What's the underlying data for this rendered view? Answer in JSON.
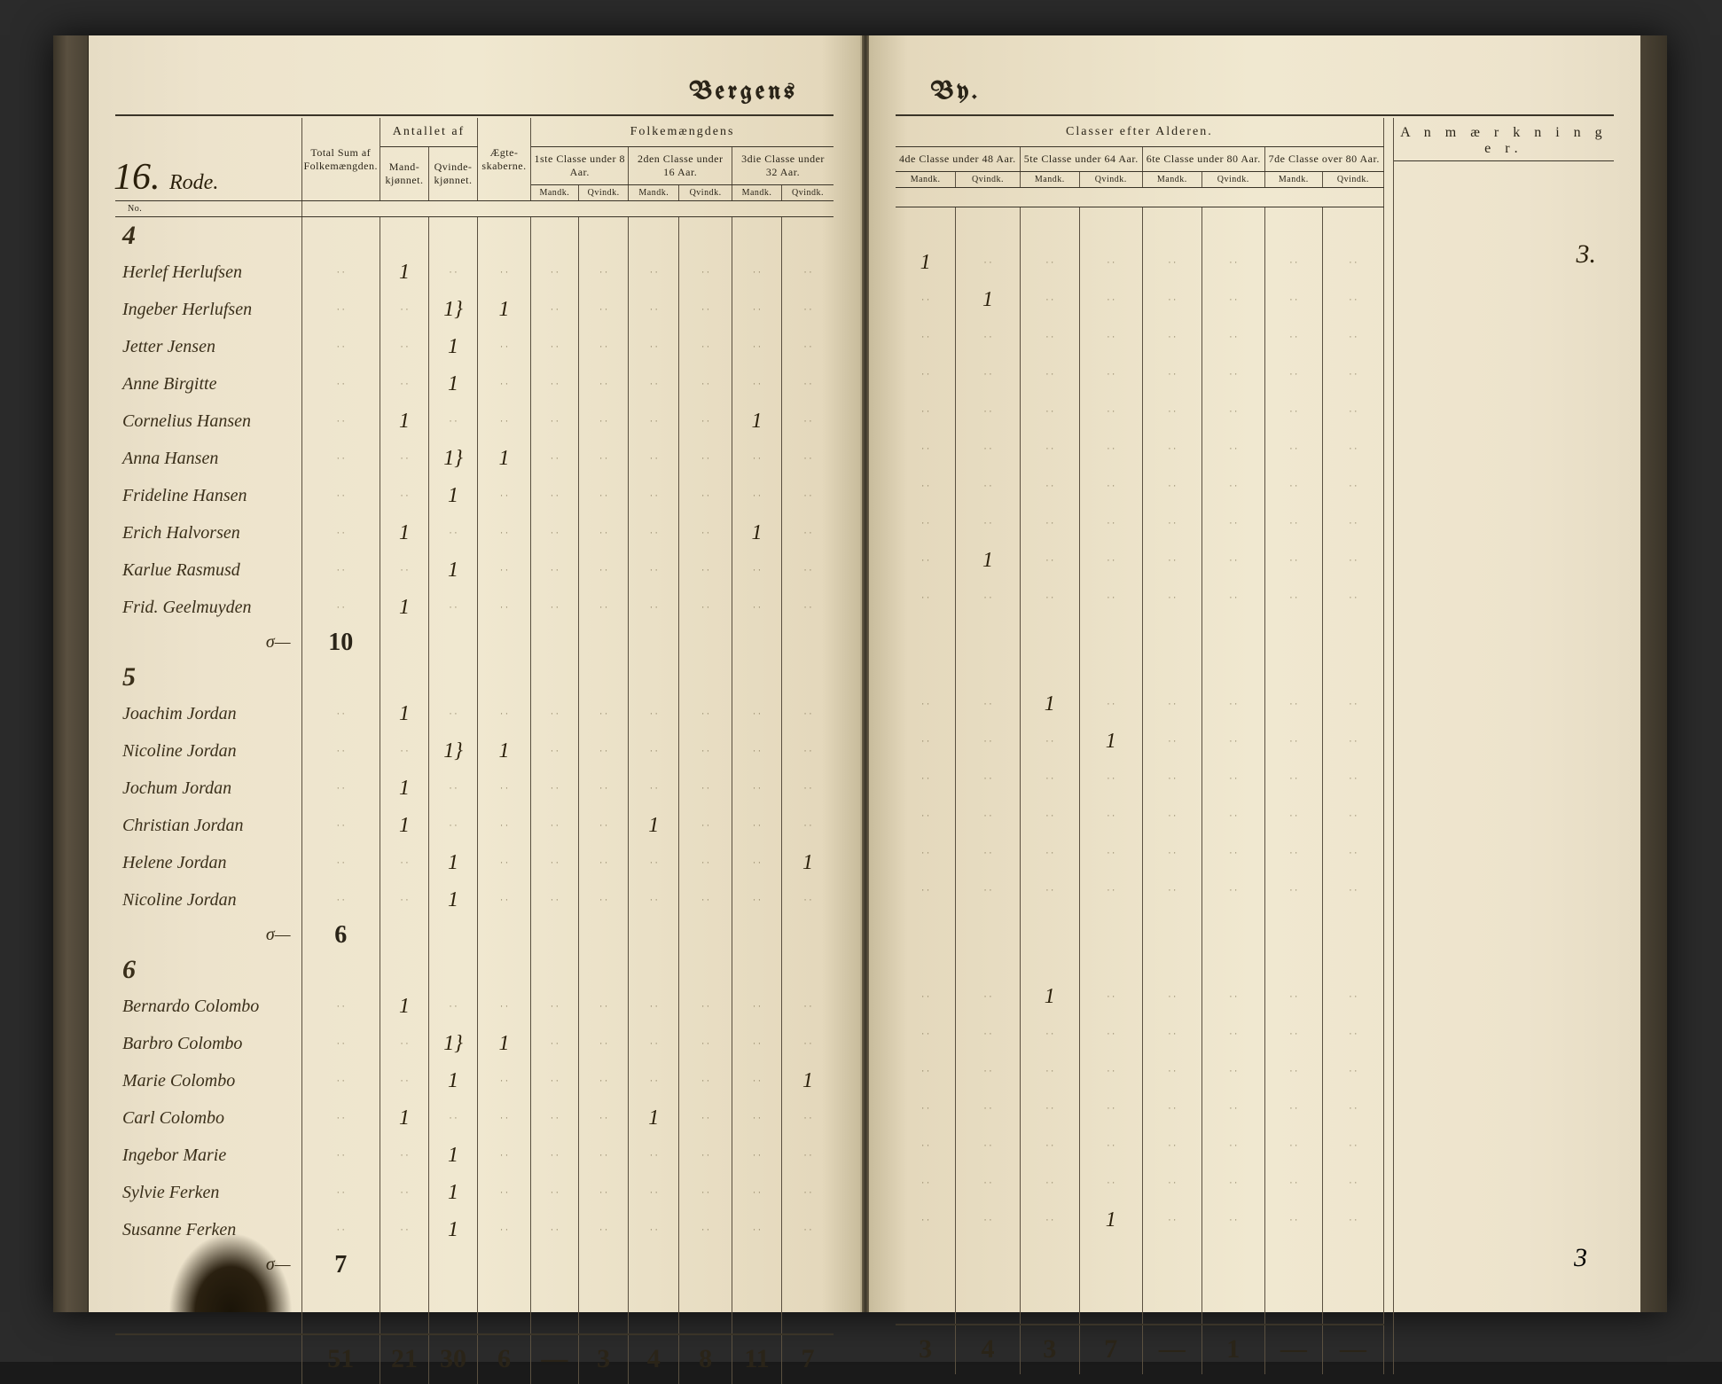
{
  "title_left": "Bergens",
  "title_right": "By.",
  "rode_number": "16.",
  "rode_word": "Rode.",
  "header": {
    "total_sum": "Total Sum af Folkemængden.",
    "antallet": "Antallet af",
    "mand": "Mand-kjønnet.",
    "qvinde": "Qvinde-kjønnet.",
    "aegte": "Ægte-skaberne.",
    "folkem": "Folkemængdens",
    "classer": "Classer efter Alderen.",
    "anm": "A n m æ r k n i n g e r.",
    "c1": "1ste Classe under 8 Aar.",
    "c2": "2den Classe under 16 Aar.",
    "c3": "3die Classe under 32 Aar.",
    "c4": "4de Classe under 48 Aar.",
    "c5": "5te Classe under 64 Aar.",
    "c6": "6te Classe under 80 Aar.",
    "c7": "7de Classe over 80 Aar.",
    "m": "Mandk.",
    "q": "Qvindk.",
    "no": "No."
  },
  "houses": [
    {
      "no": "4",
      "rows": [
        {
          "name": "Herlef Herlufsen",
          "m": "1",
          "q": "",
          "ae": "",
          "c3m": "",
          "c3q": "",
          "c4m": "1",
          "c4q": ""
        },
        {
          "name": "Ingeber Herlufsen",
          "m": "",
          "q": "1}",
          "ae": "1",
          "c4q": "1"
        },
        {
          "name": "Jetter Jensen",
          "m": "",
          "q": "1"
        },
        {
          "name": "Anne Birgitte",
          "m": "",
          "q": "1"
        },
        {
          "name": "Cornelius Hansen",
          "m": "1",
          "q": "",
          "c3m": "1"
        },
        {
          "name": "Anna Hansen",
          "m": "",
          "q": "1}",
          "ae": "1"
        },
        {
          "name": "Frideline Hansen",
          "m": "",
          "q": "1"
        },
        {
          "name": "Erich Halvorsen",
          "m": "1",
          "q": "",
          "c3m": "1"
        },
        {
          "name": "Karlue Rasmusd",
          "m": "",
          "q": "1",
          "c4q": "1"
        },
        {
          "name": "Frid. Geelmuyden",
          "m": "1",
          "q": ""
        }
      ],
      "sum": "10"
    },
    {
      "no": "5",
      "rows": [
        {
          "name": "Joachim Jordan",
          "m": "1",
          "q": "",
          "c5m": "1"
        },
        {
          "name": "Nicoline Jordan",
          "m": "",
          "q": "1}",
          "ae": "1",
          "c5q": "1"
        },
        {
          "name": "Jochum Jordan",
          "m": "1",
          "q": ""
        },
        {
          "name": "Christian Jordan",
          "m": "1",
          "q": "",
          "c2m": "1"
        },
        {
          "name": "Helene Jordan",
          "m": "",
          "q": "1",
          "c3q": "1"
        },
        {
          "name": "Nicoline Jordan",
          "m": "",
          "q": "1"
        }
      ],
      "sum": "6"
    },
    {
      "no": "6",
      "rows": [
        {
          "name": "Bernardo Colombo",
          "m": "1",
          "q": "",
          "c5m": "1"
        },
        {
          "name": "Barbro Colombo",
          "m": "",
          "q": "1}",
          "ae": "1"
        },
        {
          "name": "Marie Colombo",
          "m": "",
          "q": "1",
          "c3q": "1"
        },
        {
          "name": "Carl Colombo",
          "m": "1",
          "q": "",
          "c2m": "1"
        },
        {
          "name": "Ingebor Marie",
          "m": "",
          "q": "1"
        },
        {
          "name": "Sylvie Ferken",
          "m": "",
          "q": "1"
        },
        {
          "name": "Susanne Ferken",
          "m": "",
          "q": "1",
          "c5q": "1"
        }
      ],
      "sum": "7"
    }
  ],
  "remark_right": "3.",
  "totals": {
    "sum": "51",
    "m": "21",
    "q": "30",
    "ae": "6",
    "c1m": "—",
    "c1q": "3",
    "c2m": "4",
    "c2q": "8",
    "c3m": "11",
    "c3q": "7",
    "c4m": "3",
    "c4q": "4",
    "c5m": "3",
    "c5q": "7",
    "c6m": "—",
    "c6q": "1",
    "c7m": "—",
    "c7q": "—",
    "anm": "3"
  },
  "colors": {
    "ink": "#2a1f0a",
    "rule": "#3a3428",
    "paper": "#ede3cc"
  }
}
